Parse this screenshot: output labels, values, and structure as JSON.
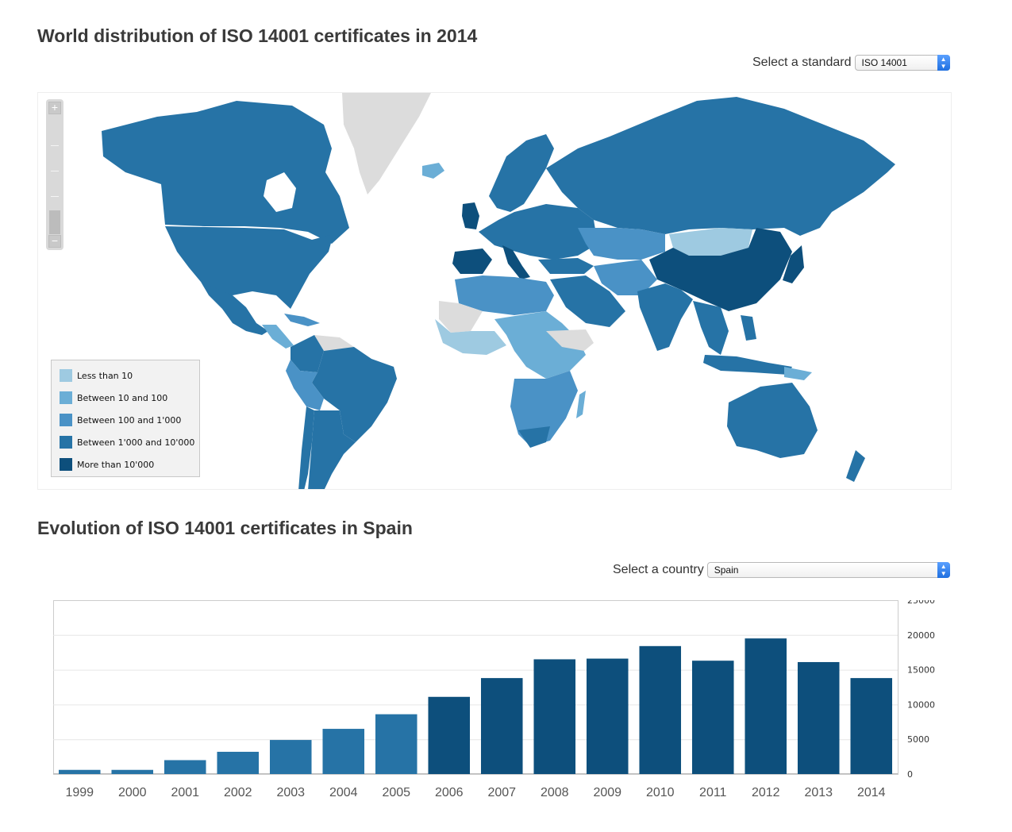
{
  "map_section": {
    "title": "World distribution of ISO 14001 certificates in 2014",
    "selector_label": "Select a standard",
    "selected_standard": "ISO 14001",
    "zoom_in_label": "+",
    "zoom_out_label": "−",
    "legend": [
      {
        "label": "Less than 10",
        "color": "#9ecae1"
      },
      {
        "label": "Between 10 and 100",
        "color": "#6baed6"
      },
      {
        "label": "Between 100 and 1'000",
        "color": "#4a92c6"
      },
      {
        "label": "Between 1'000 and 10'000",
        "color": "#2673a6"
      },
      {
        "label": "More than 10'000",
        "color": "#0d4f7c"
      }
    ],
    "no_data_color": "#dcdcdc"
  },
  "chart_section": {
    "title": "Evolution of ISO 14001 certificates in Spain",
    "selector_label": "Select a country",
    "selected_country": "Spain"
  },
  "chart_data": {
    "type": "bar",
    "title": "Evolution of ISO 14001 certificates in Spain",
    "categories": [
      "1999",
      "2000",
      "2001",
      "2002",
      "2003",
      "2004",
      "2005",
      "2006",
      "2007",
      "2008",
      "2009",
      "2010",
      "2011",
      "2012",
      "2013",
      "2014"
    ],
    "values": [
      600,
      600,
      2000,
      3200,
      4900,
      6500,
      8600,
      11100,
      13800,
      16500,
      16600,
      18400,
      16300,
      19500,
      16100,
      13800
    ],
    "bar_colors": [
      "#2673a6",
      "#2673a6",
      "#2673a6",
      "#2673a6",
      "#2673a6",
      "#2673a6",
      "#2673a6",
      "#0d4f7c",
      "#0d4f7c",
      "#0d4f7c",
      "#0d4f7c",
      "#0d4f7c",
      "#0d4f7c",
      "#0d4f7c",
      "#0d4f7c",
      "#0d4f7c"
    ],
    "y_ticks": [
      0,
      5000,
      10000,
      15000,
      20000,
      25000
    ],
    "ylim": [
      0,
      25000
    ],
    "y_axis_side": "right",
    "grid": true,
    "xlabel": "",
    "ylabel": ""
  }
}
